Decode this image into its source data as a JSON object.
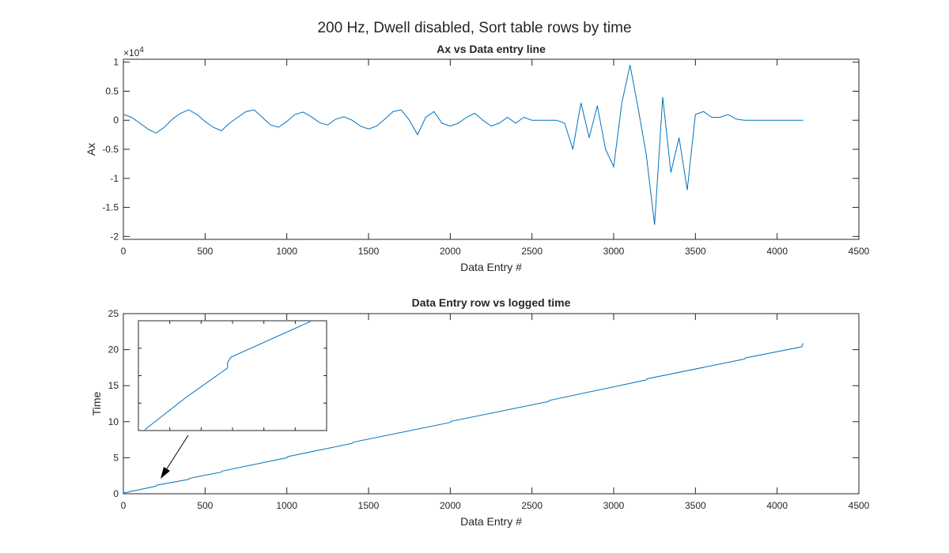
{
  "figure": {
    "suptitle": "200 Hz, Dwell disabled, Sort table rows by time"
  },
  "chart_data": [
    {
      "type": "line",
      "title": "Ax vs Data entry line",
      "xlabel": "Data Entry #",
      "ylabel": "Ax",
      "xlim": [
        0,
        4500
      ],
      "ylim": [
        -2.05,
        1.05
      ],
      "y_multiplier_label": "×10",
      "y_multiplier_exponent": "4",
      "xticks": [
        0,
        500,
        1000,
        1500,
        2000,
        2500,
        3000,
        3500,
        4000,
        4500
      ],
      "xtick_labels": [
        "0",
        "500",
        "1000",
        "1500",
        "2000",
        "2500",
        "3000",
        "3500",
        "4000",
        "4500"
      ],
      "yticks": [
        1,
        0.5,
        0,
        -0.5,
        -1,
        -1.5,
        -2
      ],
      "ytick_labels": [
        "1",
        "0.5",
        "0",
        "-0.5",
        "-1",
        "-1.5",
        "-2"
      ],
      "grid": false,
      "series_color": "#0072bd",
      "series": [
        {
          "x": [
            0,
            50,
            100,
            150,
            200,
            250,
            300,
            350,
            400,
            450,
            500,
            550,
            600,
            650,
            700,
            750,
            800,
            850,
            900,
            950,
            1000,
            1050,
            1100,
            1150,
            1200,
            1250,
            1300,
            1350,
            1400,
            1450,
            1500,
            1550,
            1600,
            1650,
            1700,
            1750,
            1800,
            1850,
            1900,
            1950,
            2000,
            2050,
            2100,
            2150,
            2200,
            2250,
            2300,
            2350,
            2400,
            2450,
            2500,
            2550,
            2600,
            2650,
            2700,
            2750,
            2800,
            2850,
            2900,
            2950,
            3000,
            3050,
            3100,
            3150,
            3200,
            3250,
            3300,
            3350,
            3400,
            3450,
            3500,
            3550,
            3600,
            3650,
            3700,
            3750,
            3800,
            3850,
            3900,
            3950,
            4000,
            4050,
            4100,
            4150,
            4160
          ],
          "y": [
            0.1,
            0.05,
            -0.05,
            -0.15,
            -0.22,
            -0.12,
            0.02,
            0.12,
            0.18,
            0.1,
            -0.02,
            -0.12,
            -0.18,
            -0.05,
            0.05,
            0.15,
            0.18,
            0.05,
            -0.08,
            -0.12,
            -0.02,
            0.1,
            0.14,
            0.06,
            -0.04,
            -0.08,
            0.02,
            0.06,
            0.0,
            -0.1,
            -0.15,
            -0.1,
            0.02,
            0.15,
            0.18,
            0.0,
            -0.25,
            0.05,
            0.15,
            -0.05,
            -0.1,
            -0.05,
            0.05,
            0.12,
            0.0,
            -0.1,
            -0.05,
            0.05,
            -0.05,
            0.05,
            0.0,
            0.0,
            0.0,
            0.0,
            -0.05,
            -0.5,
            0.3,
            -0.3,
            0.25,
            -0.5,
            -0.8,
            0.3,
            0.95,
            0.2,
            -0.6,
            -1.8,
            0.4,
            -0.9,
            -0.3,
            -1.2,
            0.1,
            0.15,
            0.05,
            0.05,
            0.1,
            0.02,
            0.0,
            0.0,
            0.0,
            0.0,
            0.0,
            0.0,
            0.0,
            0.0,
            0.0
          ]
        }
      ]
    },
    {
      "type": "line",
      "title": "Data Entry row vs logged time",
      "xlabel": "Data Entry #",
      "ylabel": "Time",
      "xlim": [
        0,
        4500
      ],
      "ylim": [
        0,
        25
      ],
      "xticks": [
        0,
        500,
        1000,
        1500,
        2000,
        2500,
        3000,
        3500,
        4000,
        4500
      ],
      "xtick_labels": [
        "0",
        "500",
        "1000",
        "1500",
        "2000",
        "2500",
        "3000",
        "3500",
        "4000",
        "4500"
      ],
      "yticks": [
        0,
        5,
        10,
        15,
        20,
        25
      ],
      "ytick_labels": [
        "0",
        "5",
        "10",
        "15",
        "20",
        "25"
      ],
      "grid": false,
      "series_color": "#0072bd",
      "series": [
        {
          "x": [
            0,
            200,
            205,
            400,
            405,
            600,
            605,
            1000,
            1005,
            1400,
            1405,
            2000,
            2005,
            2600,
            2605,
            3200,
            3205,
            3800,
            3805,
            4150,
            4160
          ],
          "y": [
            0.1,
            1.05,
            1.2,
            2.0,
            2.15,
            3.0,
            3.15,
            5.0,
            5.15,
            7.0,
            7.15,
            9.9,
            10.05,
            12.8,
            12.95,
            15.8,
            15.95,
            18.7,
            18.85,
            20.4,
            20.9
          ]
        }
      ],
      "inset": {
        "description_free": true,
        "series": [
          {
            "x": [
              0,
              0.25,
              0.5,
              0.5,
              0.52,
              1.0
            ],
            "y": [
              0.0,
              0.3,
              0.57,
              0.62,
              0.67,
              1.0
            ]
          }
        ]
      },
      "annotation": {
        "type": "arrow"
      }
    }
  ]
}
